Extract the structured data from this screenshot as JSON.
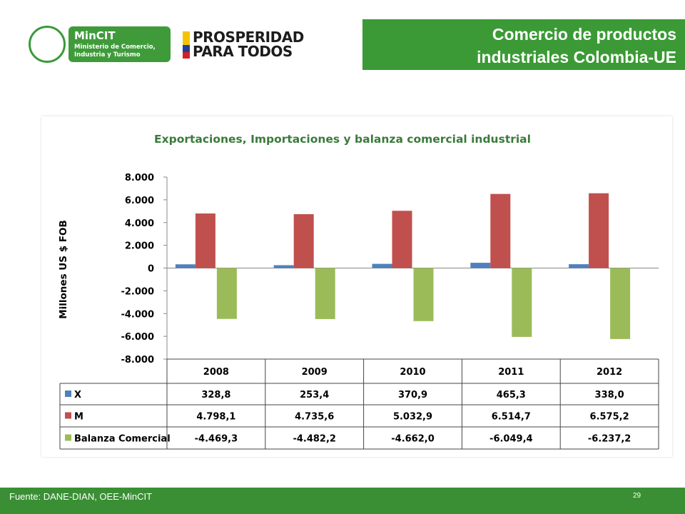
{
  "header": {
    "title_line1": "Comercio de productos",
    "title_line2": "industriales Colombia-UE"
  },
  "logos": {
    "mincit_name": "MinCIT",
    "mincit_line1": "Ministerio de Comercio,",
    "mincit_line2": "Industria y Turismo",
    "prosperidad_line1": "PROSPERIDAD",
    "prosperidad_line2": "PARA TODOS"
  },
  "chart_data": {
    "type": "bar",
    "title": "Exportaciones, Importaciones y balanza comercial industrial",
    "ylabel": "Millones US $ FOB",
    "xlabel": "",
    "categories": [
      "2008",
      "2009",
      "2010",
      "2011",
      "2012"
    ],
    "ylim": [
      -8000,
      8000
    ],
    "yticks": [
      "8.000",
      "6.000",
      "4.000",
      "2.000",
      "0",
      "-2.000",
      "-4.000",
      "-6.000",
      "-8.000"
    ],
    "grid": false,
    "legend": "data-table",
    "series": [
      {
        "name": "X",
        "color": "#4f81bd",
        "values": [
          328.8,
          253.4,
          370.9,
          465.3,
          338.0
        ],
        "labels": [
          "328,8",
          "253,4",
          "370,9",
          "465,3",
          "338,0"
        ]
      },
      {
        "name": "M",
        "color": "#c0504d",
        "values": [
          4798.1,
          4735.6,
          5032.9,
          6514.7,
          6575.2
        ],
        "labels": [
          "4.798,1",
          "4.735,6",
          "5.032,9",
          "6.514,7",
          "6.575,2"
        ]
      },
      {
        "name": "Balanza Comercial",
        "color": "#9bbb59",
        "values": [
          -4469.3,
          -4482.2,
          -4662.0,
          -6049.4,
          -6237.2
        ],
        "labels": [
          "-4.469,3",
          "-4.482,2",
          "-4.662,0",
          "-6.049,4",
          "-6.237,2"
        ]
      }
    ]
  },
  "footer": {
    "source": "Fuente: DANE-DIAN, OEE-MinCIT",
    "page_number": "29"
  }
}
